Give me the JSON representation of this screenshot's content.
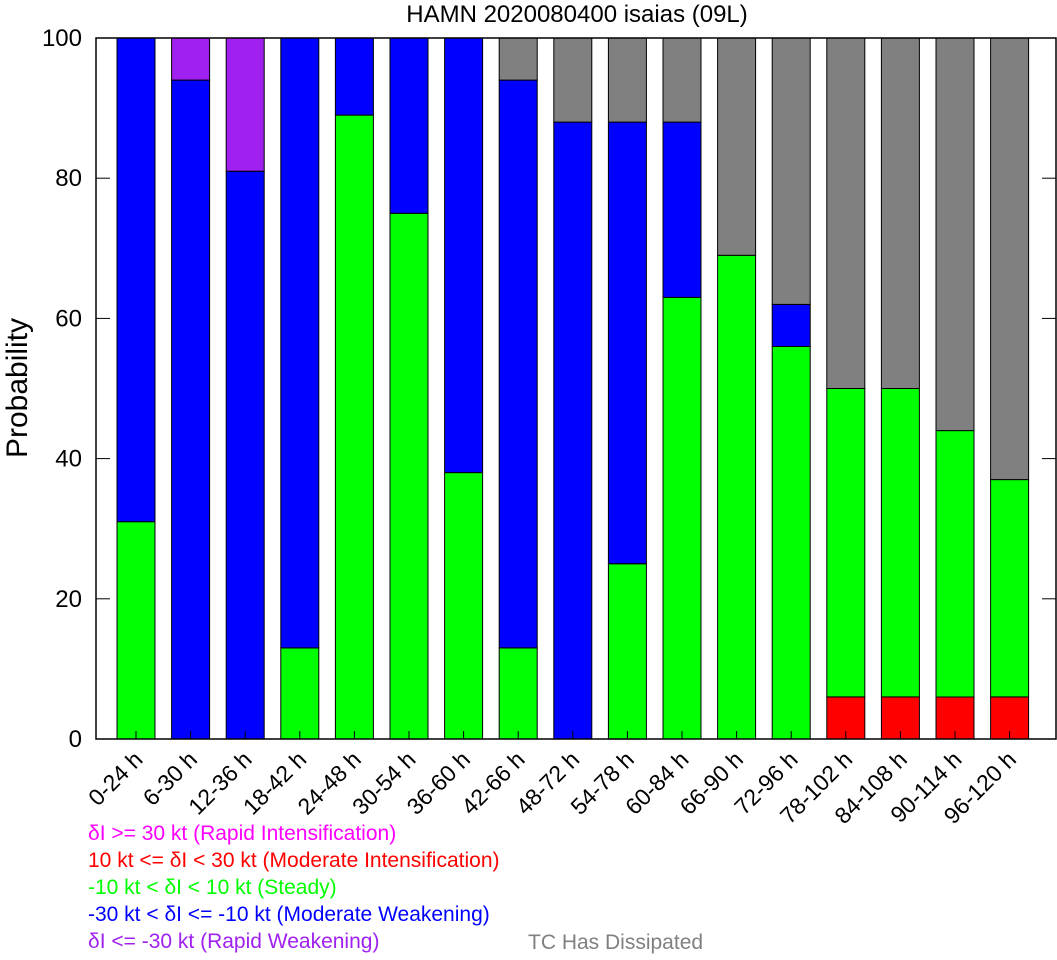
{
  "chart_data": {
    "type": "bar",
    "stacked": true,
    "title": "HAMN 2020080400 isaias (09L)",
    "xlabel": "",
    "ylabel": "Probability",
    "ylim": [
      0,
      100
    ],
    "yticks": [
      0,
      20,
      40,
      60,
      80,
      100
    ],
    "grid": false,
    "categories": [
      "0-24 h",
      "6-30 h",
      "12-36 h",
      "18-42 h",
      "24-48 h",
      "30-54 h",
      "36-60 h",
      "42-66 h",
      "48-72 h",
      "54-78 h",
      "60-84 h",
      "66-90 h",
      "72-96 h",
      "78-102 h",
      "84-108 h",
      "90-114 h",
      "96-120 h"
    ],
    "series": [
      {
        "key": "mod_int",
        "color": "#ff0000",
        "values": [
          0,
          0,
          0,
          0,
          0,
          0,
          0,
          0,
          0,
          0,
          0,
          0,
          0,
          6,
          6,
          6,
          6
        ]
      },
      {
        "key": "steady",
        "color": "#00ff00",
        "values": [
          31,
          0,
          0,
          13,
          89,
          75,
          38,
          13,
          0,
          25,
          63,
          69,
          56,
          44,
          44,
          38,
          31
        ]
      },
      {
        "key": "mod_weak",
        "color": "#0000ff",
        "values": [
          69,
          94,
          81,
          87,
          11,
          25,
          62,
          81,
          88,
          63,
          25,
          0,
          6,
          0,
          0,
          0,
          0
        ]
      },
      {
        "key": "rapid_int",
        "color": "#ff00ff",
        "values": [
          0,
          0,
          0,
          0,
          0,
          0,
          0,
          0,
          0,
          0,
          0,
          0,
          0,
          0,
          0,
          0,
          0
        ]
      },
      {
        "key": "rapid_weak",
        "color": "#a020f0",
        "values": [
          0,
          6,
          19,
          0,
          0,
          0,
          0,
          0,
          0,
          0,
          0,
          0,
          0,
          0,
          0,
          0,
          0
        ]
      },
      {
        "key": "dissipated",
        "color": "#808080",
        "values": [
          0,
          0,
          0,
          0,
          0,
          0,
          0,
          6,
          12,
          12,
          12,
          31,
          38,
          50,
          50,
          56,
          63
        ]
      }
    ],
    "legend": [
      {
        "text": "δI >= 30 kt (Rapid Intensification)",
        "color": "#ff00ff"
      },
      {
        "text": "10 kt <= δI < 30 kt (Moderate Intensification)",
        "color": "#ff0000"
      },
      {
        "text": "-10 kt < δI < 10 kt (Steady)",
        "color": "#00ff00"
      },
      {
        "text": "-30 kt < δI <= -10 kt (Moderate Weakening)",
        "color": "#0000ff"
      },
      {
        "text": "δI <= -30 kt (Rapid Weakening)",
        "color": "#a020f0"
      }
    ],
    "legend_extra": {
      "text": "TC Has Dissipated",
      "color": "#808080"
    }
  }
}
